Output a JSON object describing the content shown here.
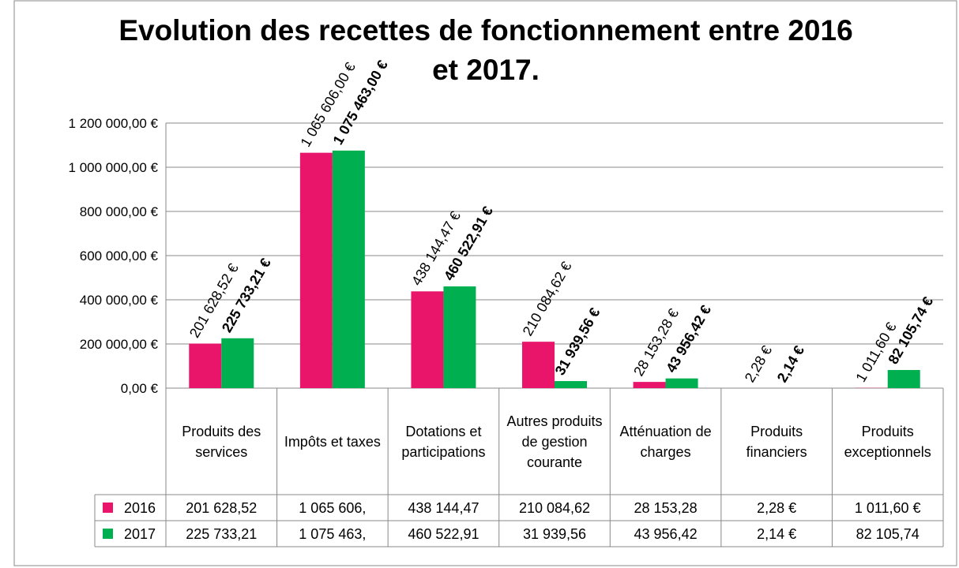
{
  "chart_data": {
    "type": "bar",
    "title": "Evolution des recettes de fonctionnement entre 2016 et 2017.",
    "categories": [
      "Produits des services",
      "Impôts et taxes",
      "Dotations et participations",
      "Autres produits de gestion courante",
      "Atténuation de charges",
      "Produits financiers",
      "Produits exceptionnels"
    ],
    "series": [
      {
        "name": "2016",
        "color": "#e8156b",
        "values": [
          201628.52,
          1065606,
          438144.47,
          210084.62,
          28153.28,
          2.28,
          1011.6
        ],
        "value_labels": [
          "201 628,52 €",
          "1 065 606,00 €",
          "438 144,47 €",
          "210 084,62 €",
          "28 153,28 €",
          "2,28 €",
          "1 011,60 €"
        ],
        "table_labels": [
          "201 628,52",
          "1 065 606,",
          "438 144,47",
          "210 084,62",
          "28 153,28",
          "2,28 €",
          "1 011,60 €"
        ]
      },
      {
        "name": "2017",
        "color": "#00b050",
        "values": [
          225733.21,
          1075463,
          460522.91,
          31939.56,
          43956.42,
          2.14,
          82105.74
        ],
        "value_labels": [
          "225 733,21 €",
          "1 075 463,00 €",
          "460 522,91 €",
          "31 939,56 €",
          "43 956,42 €",
          "2,14 €",
          "82 105,74 €"
        ],
        "table_labels": [
          "225 733,21",
          "1 075 463,",
          "460 522,91",
          "31 939,56",
          "43 956,42",
          "2,14 €",
          "82 105,74"
        ]
      }
    ],
    "ylim": [
      0,
      1200000
    ],
    "yticks": [
      {
        "value": 0,
        "label": "0,00 €"
      },
      {
        "value": 200000,
        "label": "200 000,00 €"
      },
      {
        "value": 400000,
        "label": "400 000,00 €"
      },
      {
        "value": 600000,
        "label": "600 000,00 €"
      },
      {
        "value": 800000,
        "label": "800 000,00 €"
      },
      {
        "value": 1000000,
        "label": "1 000 000,00 €"
      },
      {
        "value": 1200000,
        "label": "1 200 000,00 €"
      }
    ],
    "grid": true
  }
}
